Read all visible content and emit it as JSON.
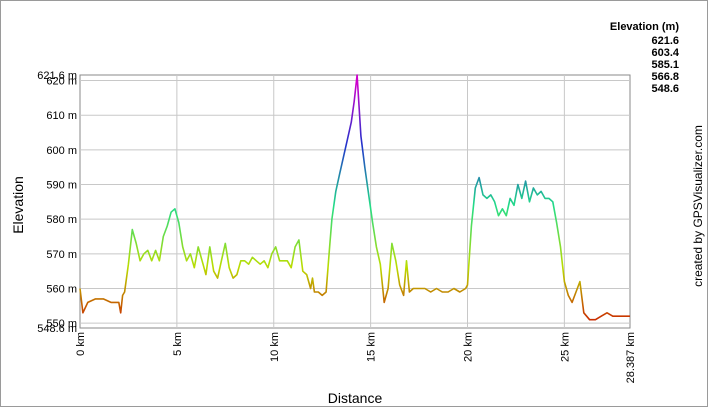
{
  "chart_data": {
    "type": "line",
    "title": "",
    "xlabel": "Distance",
    "ylabel": "Elevation",
    "xlim": [
      0,
      28.387
    ],
    "ylim": [
      548.6,
      621.6
    ],
    "grid": true,
    "x_ticks": [
      {
        "value": 0,
        "label": "0 km"
      },
      {
        "value": 5,
        "label": "5 km"
      },
      {
        "value": 10,
        "label": "10 km"
      },
      {
        "value": 15,
        "label": "15 km"
      },
      {
        "value": 20,
        "label": "20 km"
      },
      {
        "value": 25,
        "label": "25 km"
      },
      {
        "value": 28.387,
        "label": "28.387 km"
      }
    ],
    "y_ticks": [
      {
        "value": 550,
        "label": "550 m"
      },
      {
        "value": 560,
        "label": "560 m"
      },
      {
        "value": 570,
        "label": "570 m"
      },
      {
        "value": 580,
        "label": "580 m"
      },
      {
        "value": 590,
        "label": "590 m"
      },
      {
        "value": 600,
        "label": "600 m"
      },
      {
        "value": 610,
        "label": "610 m"
      },
      {
        "value": 620,
        "label": "620 m"
      }
    ],
    "y_extremes": [
      {
        "value": 621.6,
        "label": "621.6 m"
      },
      {
        "value": 548.6,
        "label": "548.6 m"
      }
    ],
    "legend": {
      "title": "Elevation (m)",
      "placement": "top-right",
      "entries": [
        {
          "label": "621.6",
          "color": "#cc00cc"
        },
        {
          "label": "603.4",
          "color": "#2233cc"
        },
        {
          "label": "585.1",
          "color": "#22dd88"
        },
        {
          "label": "566.8",
          "color": "#bbdd00"
        },
        {
          "label": "548.6",
          "color": "#cc1100"
        }
      ]
    },
    "credit": "created by GPSVisualizer.com",
    "series": [
      {
        "x": [
          0,
          0.15,
          0.4,
          0.8,
          1.2,
          1.6,
          2.0,
          2.1,
          2.2,
          2.3,
          2.5,
          2.7,
          2.9,
          3.1,
          3.3,
          3.5,
          3.7,
          3.9,
          4.1,
          4.3,
          4.5,
          4.7,
          4.9,
          5.1,
          5.3,
          5.5,
          5.7,
          5.9,
          6.1,
          6.3,
          6.5,
          6.7,
          6.9,
          7.1,
          7.3,
          7.5,
          7.7,
          7.9,
          8.1,
          8.3,
          8.5,
          8.7,
          8.9,
          9.1,
          9.3,
          9.5,
          9.7,
          9.9,
          10.1,
          10.3,
          10.5,
          10.7,
          10.9,
          11.1,
          11.3,
          11.5,
          11.7,
          11.9,
          12.0,
          12.1,
          12.3,
          12.5,
          12.7,
          12.9,
          13.0,
          13.2,
          13.4,
          13.6,
          13.8,
          14.0,
          14.15,
          14.3,
          14.5,
          14.7,
          14.9,
          15.1,
          15.3,
          15.5,
          15.7,
          15.9,
          16.1,
          16.3,
          16.5,
          16.7,
          16.85,
          17.0,
          17.2,
          17.5,
          17.8,
          18.1,
          18.4,
          18.7,
          19.0,
          19.3,
          19.6,
          19.9,
          20.0,
          20.2,
          20.4,
          20.6,
          20.8,
          21.0,
          21.2,
          21.4,
          21.6,
          21.8,
          22.0,
          22.2,
          22.4,
          22.6,
          22.8,
          23.0,
          23.2,
          23.4,
          23.6,
          23.8,
          24.0,
          24.2,
          24.4,
          24.6,
          24.8,
          24.9,
          25.0,
          25.2,
          25.4,
          25.6,
          25.8,
          26.0,
          26.3,
          26.6,
          26.9,
          27.2,
          27.5,
          27.8,
          28.1,
          28.387
        ],
        "y": [
          560,
          553,
          556,
          557,
          557,
          556,
          556,
          553,
          558,
          559,
          567,
          577,
          573,
          568,
          570,
          571,
          568,
          571,
          568,
          575,
          578,
          582,
          583,
          579,
          572,
          568,
          570,
          566,
          572,
          568,
          564,
          572,
          565,
          563,
          568,
          573,
          566,
          563,
          564,
          568,
          568,
          567,
          569,
          568,
          567,
          568,
          566,
          570,
          572,
          568,
          568,
          568,
          566,
          572,
          574,
          565,
          564,
          560,
          563,
          559,
          559,
          558,
          559,
          573,
          580,
          588,
          593,
          598,
          603,
          608,
          614,
          621.6,
          604,
          595,
          587,
          579,
          572,
          567,
          556,
          560,
          573,
          568,
          561,
          558,
          568,
          559,
          560,
          560,
          560,
          559,
          560,
          559,
          559,
          560,
          559,
          560,
          561,
          578,
          589,
          592,
          587,
          586,
          587,
          585,
          581,
          583,
          581,
          586,
          584,
          590,
          586,
          591,
          585,
          589,
          587,
          588,
          586,
          586,
          585,
          579,
          572,
          567,
          562,
          558,
          556,
          559,
          562,
          553,
          551,
          551,
          552,
          553,
          552,
          552,
          552,
          552
        ]
      }
    ]
  }
}
